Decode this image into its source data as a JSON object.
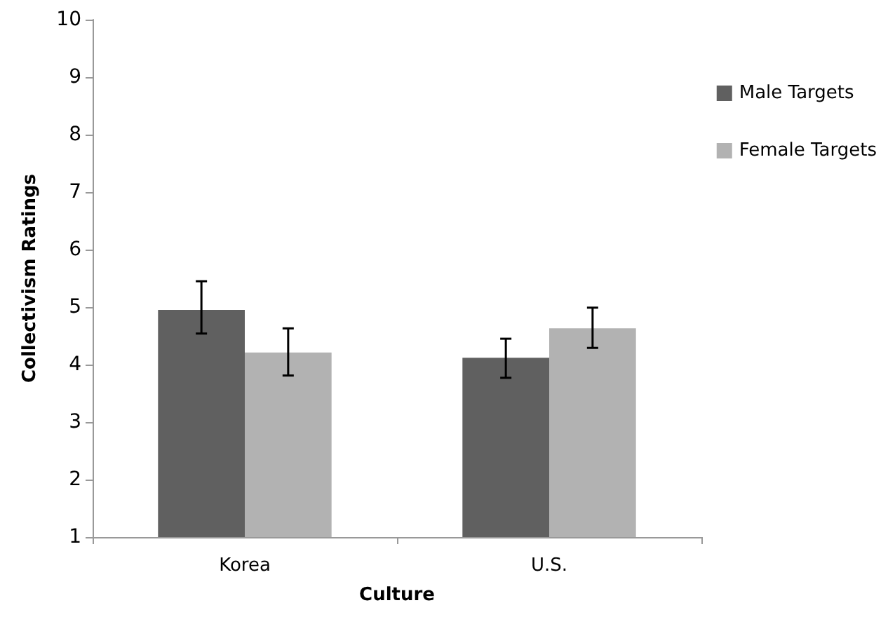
{
  "chart_data": {
    "type": "bar",
    "xlabel": "Culture",
    "ylabel": "Collectivism Ratings",
    "categories": [
      "Korea",
      "U.S."
    ],
    "series": [
      {
        "name": "Male Targets",
        "color": "#606060",
        "values": [
          4.95,
          4.12
        ],
        "errors": [
          [
            4.54,
            5.45
          ],
          [
            3.77,
            4.45
          ]
        ]
      },
      {
        "name": "Female Targets",
        "color": "#b2b2b2",
        "values": [
          4.21,
          4.63
        ],
        "errors": [
          [
            3.81,
            4.63
          ],
          [
            4.29,
            4.99
          ]
        ]
      }
    ],
    "ylim": [
      1,
      10
    ],
    "yticks": [
      1,
      2,
      3,
      4,
      5,
      6,
      7,
      8,
      9,
      10
    ],
    "grid": false,
    "legend": "right"
  }
}
